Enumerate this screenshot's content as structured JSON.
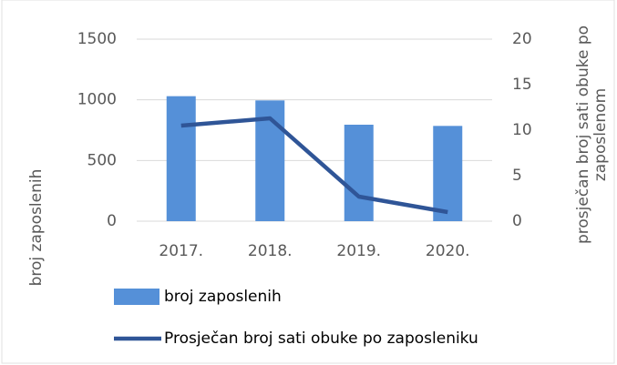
{
  "chart_data": {
    "type": "bar-line",
    "categories": [
      "2017.",
      "2018.",
      "2019.",
      "2020."
    ],
    "series": [
      {
        "name": "broj zaposlenih",
        "type": "bar",
        "color": "#5590d8",
        "values": [
          1030,
          995,
          795,
          785
        ]
      },
      {
        "name": "Prosječan broj sati obuke po zaposleniku",
        "type": "line",
        "axis": "y2",
        "color": "#2f5597",
        "values": [
          10.5,
          11.3,
          2.7,
          1.0
        ]
      }
    ],
    "ylabel": "broj zaposlenih",
    "y2label": [
      "prosječan broj sati obuke po",
      "zaposlenom"
    ],
    "ylim": [
      0,
      1500
    ],
    "yticks": [
      0,
      500,
      1000,
      1500
    ],
    "y2lim": [
      0,
      20
    ],
    "y2ticks": [
      0,
      5,
      10,
      15,
      20
    ],
    "grid": true,
    "legend": "bottom-left"
  }
}
